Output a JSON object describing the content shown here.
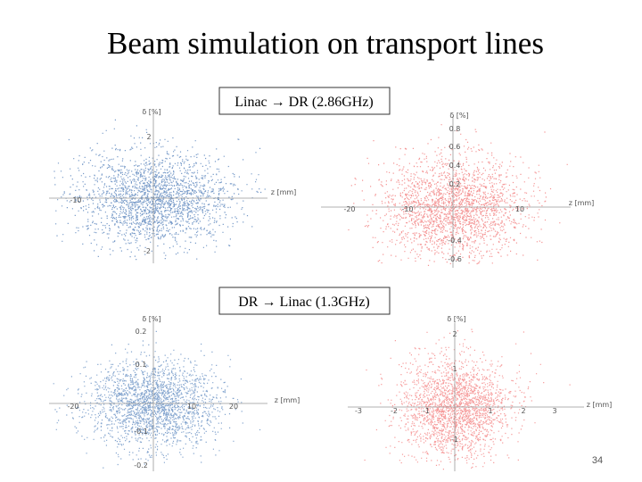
{
  "title": "Beam simulation on transport lines",
  "sections": [
    {
      "label": "Linac → DR (2.86GHz)"
    },
    {
      "label": "DR → Linac (1.3GHz)"
    }
  ],
  "plots": [
    {
      "x_label": "z [mm]",
      "y_label": "δ [%]",
      "tick_labels": [
        "2",
        "-2",
        "-10"
      ]
    },
    {
      "x_label": "z [mm]",
      "y_label": "δ [%]",
      "tick_labels": [
        "0.8",
        "0.6",
        "0.4",
        "0.2",
        "-0.4",
        "-0.6",
        "-20",
        "-10",
        "10"
      ]
    },
    {
      "x_label": "z [mm]",
      "y_label": "δ [%]",
      "tick_labels": [
        "0.2",
        "0.1",
        "-0.1",
        "-0.2",
        "-20",
        "10",
        "20"
      ]
    },
    {
      "x_label": "z [mm]",
      "y_label": "δ [%]",
      "tick_labels": [
        "2",
        "1",
        "-1",
        "-3",
        "-2",
        "-1",
        "1",
        "2",
        "3"
      ]
    }
  ],
  "page_number": "34"
}
